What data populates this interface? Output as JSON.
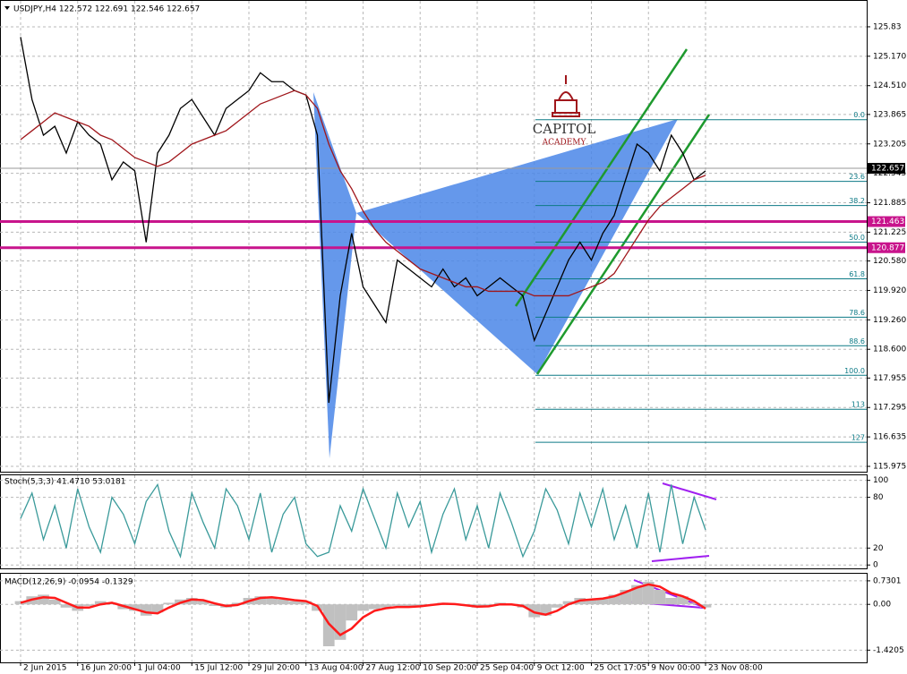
{
  "chart_data": [
    {
      "type": "line",
      "title": "USDJPY,H4  122.572 122.691 122.546 122.657",
      "categories": [
        "2 Jun 2015",
        null,
        null,
        null,
        null,
        "16 Jun 20:00",
        null,
        null,
        null,
        null,
        "1 Jul 04:00",
        null,
        null,
        null,
        null,
        "15 Jul 12:00",
        null,
        null,
        null,
        null,
        "29 Jul 20:00",
        null,
        null,
        null,
        null,
        "13 Aug 04:00",
        null,
        null,
        null,
        null,
        "27 Aug 12:00",
        null,
        null,
        null,
        null,
        "10 Sep 20:00",
        null,
        null,
        null,
        null,
        "25 Sep 04:00",
        null,
        null,
        null,
        null,
        "9 Oct 12:00",
        null,
        null,
        null,
        null,
        "25 Oct 17:05",
        null,
        null,
        null,
        null,
        "9 Nov 00:00",
        null,
        null,
        null,
        null,
        "23 Nov 08:00"
      ],
      "series": [
        {
          "color": "#000000",
          "values": [
            125.6,
            124.2,
            123.4,
            123.6,
            123.0,
            123.7,
            123.4,
            123.2,
            122.4,
            122.8,
            122.6,
            121.0,
            123.0,
            123.4,
            124.0,
            124.2,
            123.8,
            123.4,
            124.0,
            124.2,
            124.4,
            124.8,
            124.6,
            124.6,
            124.4,
            124.3,
            123.4,
            117.4,
            119.8,
            121.2,
            120.0,
            119.6,
            119.2,
            120.6,
            120.4,
            120.2,
            120.0,
            120.4,
            120.0,
            120.2,
            119.8,
            120.0,
            120.2,
            120.0,
            119.8,
            118.8,
            119.4,
            120.0,
            120.6,
            121.0,
            120.6,
            121.2,
            121.6,
            122.4,
            123.2,
            123.0,
            122.6,
            123.4,
            123.0,
            122.4,
            122.6
          ]
        },
        {
          "color": "#a0161b",
          "values": [
            123.3,
            123.5,
            123.7,
            123.9,
            123.8,
            123.7,
            123.6,
            123.4,
            123.3,
            123.1,
            122.9,
            122.8,
            122.7,
            122.8,
            123.0,
            123.2,
            123.3,
            123.4,
            123.5,
            123.7,
            123.9,
            124.1,
            124.2,
            124.3,
            124.4,
            124.3,
            124.0,
            123.2,
            122.6,
            122.2,
            121.7,
            121.3,
            121.0,
            120.8,
            120.6,
            120.4,
            120.3,
            120.2,
            120.1,
            120.0,
            120.0,
            119.9,
            119.9,
            119.9,
            119.9,
            119.8,
            119.8,
            119.8,
            119.8,
            119.9,
            120.0,
            120.1,
            120.3,
            120.7,
            121.1,
            121.5,
            121.8,
            122.0,
            122.2,
            122.4,
            122.5
          ]
        }
      ],
      "ylim": [
        115.855,
        126.411
      ],
      "yticks": [
        125.83,
        {
          "value": 125.17,
          "label": "125.170"
        },
        {
          "value": 124.51,
          "label": "124.510"
        },
        123.865,
        123.205,
        122.545,
        121.885,
        121.225,
        {
          "value": 120.58,
          "label": "120.580"
        },
        {
          "value": 119.92,
          "label": "119.920"
        },
        {
          "value": 119.26,
          "label": "119.260"
        },
        {
          "value": 118.6,
          "label": "118.600"
        },
        117.955,
        117.295,
        116.635,
        115.975
      ],
      "grid": true,
      "last_price": 122.657,
      "hlines": [
        {
          "value": 121.463,
          "color": "#c8148c"
        },
        {
          "value": 120.877,
          "color": "#c8148c"
        }
      ],
      "fib_levels": [
        {
          "label": "0.0",
          "price": 123.747
        },
        {
          "label": "23.6",
          "price": 122.364
        },
        {
          "label": "38.2",
          "price": 121.824
        },
        {
          "label": "50.0",
          "price": 121.002
        },
        {
          "label": "61.8",
          "price": 120.181
        },
        {
          "label": "78.6",
          "price": 119.32
        },
        {
          "label": "88.6",
          "price": 118.679
        },
        {
          "label": "100.0",
          "price": 118.017
        },
        {
          "label": "113",
          "price": 117.256
        },
        {
          "label": "127",
          "price": 116.515
        }
      ],
      "fib_color": "#0d7a86",
      "watermark": [
        "CAPITOL",
        "ACADEMY"
      ]
    },
    {
      "type": "line",
      "title": "Stoch(5,3,3) 41.4710 53.0181",
      "series": [
        {
          "color": "#3a9a9a",
          "values": [
            55,
            85,
            30,
            70,
            20,
            90,
            45,
            15,
            80,
            60,
            25,
            75,
            95,
            40,
            10,
            85,
            50,
            20,
            90,
            70,
            30,
            85,
            15,
            60,
            80,
            25,
            10,
            15,
            70,
            40,
            90,
            55,
            20,
            85,
            45,
            75,
            15,
            60,
            90,
            30,
            70,
            20,
            85,
            50,
            10,
            40,
            90,
            65,
            25,
            85,
            45,
            90,
            30,
            70,
            20,
            85,
            15,
            95,
            25,
            80,
            41.471
          ]
        }
      ],
      "ylim": [
        -4,
        106
      ],
      "yticks": [
        100,
        80,
        20,
        0
      ]
    },
    {
      "type": "bar",
      "title": "MACD(12,26,9) -0.0954 -0.1329",
      "series": [
        {
          "color": "#c0c0c0",
          "values": [
            0.1,
            0.25,
            0.3,
            0.15,
            -0.1,
            -0.2,
            -0.05,
            0.1,
            0.05,
            -0.15,
            -0.2,
            -0.35,
            -0.25,
            0.05,
            0.15,
            0.2,
            0.1,
            -0.05,
            -0.1,
            0.05,
            0.2,
            0.25,
            0.2,
            0.15,
            0.1,
            0.1,
            -0.2,
            -1.3,
            -1.1,
            -0.5,
            -0.2,
            -0.15,
            -0.1,
            -0.05,
            -0.1,
            -0.05,
            0,
            0.05,
            0,
            -0.05,
            -0.1,
            -0.05,
            0.05,
            0,
            -0.1,
            -0.4,
            -0.35,
            -0.1,
            0.1,
            0.2,
            0.15,
            0.2,
            0.3,
            0.45,
            0.6,
            0.7,
            0.45,
            0.2,
            0.25,
            0.05,
            -0.0954
          ]
        },
        {
          "color": "#ff1a1a",
          "values": [
            0.05,
            0.15,
            0.22,
            0.2,
            0.05,
            -0.1,
            -0.1,
            0.0,
            0.05,
            -0.05,
            -0.15,
            -0.25,
            -0.28,
            -0.1,
            0.05,
            0.15,
            0.13,
            0.03,
            -0.05,
            -0.02,
            0.1,
            0.2,
            0.22,
            0.18,
            0.13,
            0.1,
            -0.05,
            -0.6,
            -0.95,
            -0.75,
            -0.4,
            -0.2,
            -0.12,
            -0.08,
            -0.08,
            -0.06,
            -0.02,
            0.02,
            0.01,
            -0.03,
            -0.07,
            -0.06,
            0.0,
            0.0,
            -0.05,
            -0.25,
            -0.32,
            -0.2,
            0.0,
            0.12,
            0.15,
            0.18,
            0.25,
            0.38,
            0.52,
            0.62,
            0.55,
            0.35,
            0.25,
            0.1,
            -0.1329
          ]
        }
      ],
      "ylim": [
        -1.8,
        0.95
      ],
      "yticks": [
        0.7301,
        {
          "value": 0,
          "label": "0.00"
        },
        -1.4205
      ]
    }
  ]
}
